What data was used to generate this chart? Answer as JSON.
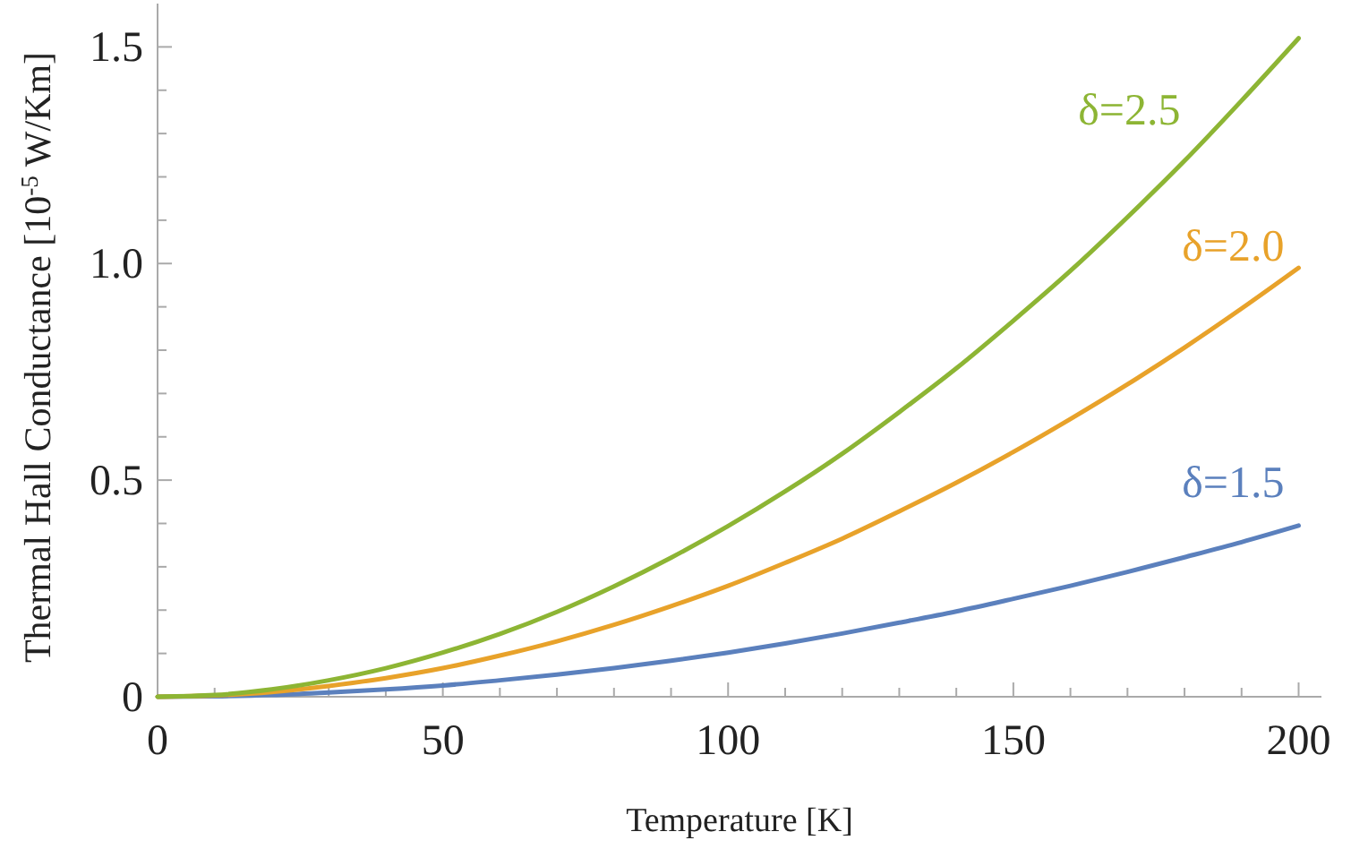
{
  "chart_data": {
    "type": "line",
    "xlabel": "Temperature [K]",
    "ylabel": "Thermal Hall Conductance  [10$^{-5}$ W/Km]",
    "x": [
      0,
      10,
      20,
      30,
      40,
      50,
      60,
      70,
      80,
      90,
      100,
      110,
      120,
      130,
      140,
      150,
      160,
      170,
      180,
      190,
      200
    ],
    "series": [
      {
        "name": "δ=1.5",
        "color": "#5b80bd",
        "values": [
          0,
          0.001,
          0.004,
          0.01,
          0.017,
          0.026,
          0.038,
          0.051,
          0.066,
          0.083,
          0.102,
          0.123,
          0.146,
          0.171,
          0.197,
          0.226,
          0.256,
          0.288,
          0.322,
          0.357,
          0.395
        ]
      },
      {
        "name": "δ=2.0",
        "color": "#e8a22a",
        "values": [
          0,
          0.003,
          0.011,
          0.025,
          0.043,
          0.066,
          0.095,
          0.128,
          0.166,
          0.209,
          0.256,
          0.309,
          0.365,
          0.428,
          0.494,
          0.565,
          0.641,
          0.721,
          0.806,
          0.896,
          0.99
        ]
      },
      {
        "name": "δ=2.5",
        "color": "#8db534",
        "values": [
          0,
          0.004,
          0.017,
          0.038,
          0.066,
          0.102,
          0.145,
          0.196,
          0.255,
          0.321,
          0.394,
          0.474,
          0.561,
          0.657,
          0.758,
          0.868,
          0.983,
          1.107,
          1.237,
          1.376,
          1.52
        ]
      }
    ],
    "xlim": [
      0,
      204
    ],
    "ylim": [
      0,
      1.6
    ],
    "xticks": [
      0,
      {
        "value": 10,
        "label": null
      },
      {
        "value": 20,
        "label": null
      },
      {
        "value": 30,
        "label": null
      },
      {
        "value": 40,
        "label": null
      },
      50,
      {
        "value": 60,
        "label": null
      },
      {
        "value": 70,
        "label": null
      },
      {
        "value": 80,
        "label": null
      },
      {
        "value": 90,
        "label": null
      },
      100,
      {
        "value": 110,
        "label": null
      },
      {
        "value": 120,
        "label": null
      },
      {
        "value": 130,
        "label": null
      },
      {
        "value": 140,
        "label": null
      },
      150,
      {
        "value": 160,
        "label": null
      },
      {
        "value": 170,
        "label": null
      },
      {
        "value": 180,
        "label": null
      },
      {
        "value": 190,
        "label": null
      },
      200
    ],
    "yticks": [
      0,
      {
        "value": 0.1,
        "label": null
      },
      {
        "value": 0.2,
        "label": null
      },
      {
        "value": 0.3,
        "label": null
      },
      {
        "value": 0.4,
        "label": null
      },
      0.5,
      {
        "value": 0.6,
        "label": null
      },
      {
        "value": 0.7,
        "label": null
      },
      {
        "value": 0.8,
        "label": null
      },
      {
        "value": 0.9,
        "label": null
      },
      {
        "value": 1,
        "label": "1.0"
      },
      {
        "value": 1.1,
        "label": null
      },
      {
        "value": 1.2,
        "label": null
      },
      {
        "value": 1.3,
        "label": null
      },
      {
        "value": 1.4,
        "label": null
      },
      1.5
    ],
    "grid": false,
    "marker": "none",
    "line_style": "solid"
  }
}
